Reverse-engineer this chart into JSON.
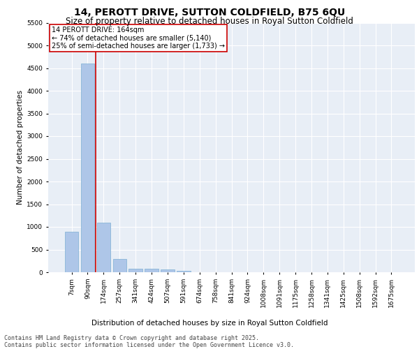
{
  "title1": "14, PEROTT DRIVE, SUTTON COLDFIELD, B75 6QU",
  "title2": "Size of property relative to detached houses in Royal Sutton Coldfield",
  "xlabel": "Distribution of detached houses by size in Royal Sutton Coldfield",
  "ylabel": "Number of detached properties",
  "categories": [
    "7sqm",
    "90sqm",
    "174sqm",
    "257sqm",
    "341sqm",
    "424sqm",
    "507sqm",
    "591sqm",
    "674sqm",
    "758sqm",
    "841sqm",
    "924sqm",
    "1008sqm",
    "1091sqm",
    "1175sqm",
    "1258sqm",
    "1341sqm",
    "1425sqm",
    "1508sqm",
    "1592sqm",
    "1675sqm"
  ],
  "values": [
    900,
    4600,
    1100,
    300,
    80,
    70,
    55,
    30,
    0,
    0,
    0,
    0,
    0,
    0,
    0,
    0,
    0,
    0,
    0,
    0,
    0
  ],
  "bar_color": "#aec6e8",
  "bar_edge_color": "#7bafd4",
  "background_color": "#e8eef6",
  "grid_color": "#ffffff",
  "vline_color": "#cc0000",
  "annotation_text": "14 PEROTT DRIVE: 164sqm\n← 74% of detached houses are smaller (5,140)\n25% of semi-detached houses are larger (1,733) →",
  "annotation_box_color": "#cc0000",
  "ylim": [
    0,
    5500
  ],
  "yticks": [
    0,
    500,
    1000,
    1500,
    2000,
    2500,
    3000,
    3500,
    4000,
    4500,
    5000,
    5500
  ],
  "footer": "Contains HM Land Registry data © Crown copyright and database right 2025.\nContains public sector information licensed under the Open Government Licence v3.0.",
  "title1_fontsize": 10,
  "title2_fontsize": 8.5,
  "xlabel_fontsize": 7.5,
  "ylabel_fontsize": 7.5,
  "tick_fontsize": 6.5,
  "annotation_fontsize": 7,
  "footer_fontsize": 6
}
